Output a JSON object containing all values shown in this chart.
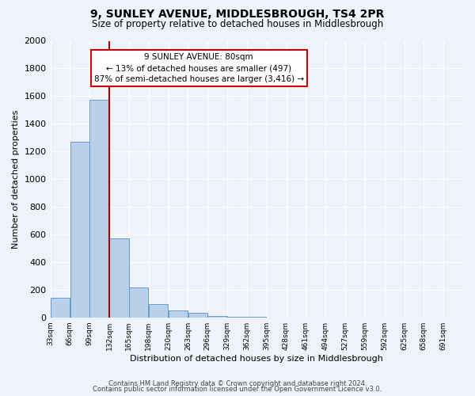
{
  "title": "9, SUNLEY AVENUE, MIDDLESBROUGH, TS4 2PR",
  "subtitle": "Size of property relative to detached houses in Middlesbrough",
  "xlabel": "Distribution of detached houses by size in Middlesbrough",
  "ylabel": "Number of detached properties",
  "bin_labels": [
    "33sqm",
    "66sqm",
    "99sqm",
    "132sqm",
    "165sqm",
    "198sqm",
    "230sqm",
    "263sqm",
    "296sqm",
    "329sqm",
    "362sqm",
    "395sqm",
    "428sqm",
    "461sqm",
    "494sqm",
    "527sqm",
    "559sqm",
    "592sqm",
    "625sqm",
    "658sqm",
    "691sqm"
  ],
  "bar_values": [
    140,
    1270,
    1575,
    570,
    215,
    95,
    50,
    30,
    10,
    5,
    2,
    0,
    0,
    0,
    0,
    0,
    0,
    0,
    0,
    0,
    0
  ],
  "bar_color": "#b8d0ea",
  "bar_edge_color": "#6699cc",
  "vline_x_index": 2,
  "annotation_title": "9 SUNLEY AVENUE: 80sqm",
  "annotation_line1": "← 13% of detached houses are smaller (497)",
  "annotation_line2": "87% of semi-detached houses are larger (3,416) →",
  "annotation_box_color": "#ffffff",
  "annotation_box_edge_color": "#cc0000",
  "vline_color": "#aa0000",
  "ylim": [
    0,
    2000
  ],
  "yticks": [
    0,
    200,
    400,
    600,
    800,
    1000,
    1200,
    1400,
    1600,
    1800,
    2000
  ],
  "footer1": "Contains HM Land Registry data © Crown copyright and database right 2024.",
  "footer2": "Contains public sector information licensed under the Open Government Licence v3.0.",
  "background_color": "#eef2fa",
  "plot_bg_color": "#eef2fa",
  "grid_color": "#ffffff",
  "bin_width": 33
}
